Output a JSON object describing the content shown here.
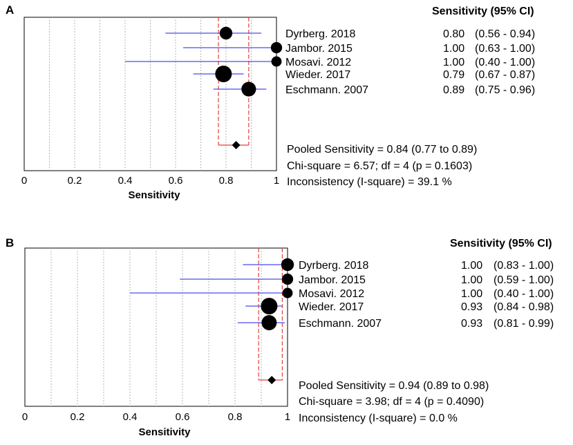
{
  "chart_data": [
    {
      "type": "forest",
      "panel": "A",
      "header": "Sensitivity (95% CI)",
      "xlabel": "Sensitivity",
      "xlim": [
        0,
        1
      ],
      "ticks": [
        "0",
        "0.2",
        "0.4",
        "0.6",
        "0.8",
        "1"
      ],
      "tick_values": [
        0,
        0.2,
        0.4,
        0.6,
        0.8,
        1
      ],
      "studies": [
        {
          "name": "Dyrberg. 2018",
          "est": 0.8,
          "lo": 0.56,
          "hi": 0.94,
          "est_label": "0.80",
          "ci_label": "(0.56 - 0.94)",
          "weight": 0.6
        },
        {
          "name": "Jambor. 2015",
          "est": 1.0,
          "lo": 0.63,
          "hi": 1.0,
          "est_label": "1.00",
          "ci_label": "(0.63 - 1.00)",
          "weight": 0.45
        },
        {
          "name": "Mosavi. 2012",
          "est": 1.0,
          "lo": 0.4,
          "hi": 1.0,
          "est_label": "1.00",
          "ci_label": "(0.40 - 1.00)",
          "weight": 0.35
        },
        {
          "name": "Wieder. 2017",
          "est": 0.79,
          "lo": 0.67,
          "hi": 0.87,
          "est_label": "0.79",
          "ci_label": "(0.67 - 0.87)",
          "weight": 1.0
        },
        {
          "name": "Eschmann. 2007",
          "est": 0.89,
          "lo": 0.75,
          "hi": 0.96,
          "est_label": "0.89",
          "ci_label": "(0.75 - 0.96)",
          "weight": 0.8
        }
      ],
      "pooled": {
        "est": 0.84,
        "lo": 0.77,
        "hi": 0.89
      },
      "summary": [
        "Pooled Sensitivity = 0.84 (0.77 to 0.89)",
        "Chi-square = 6.57; df =  4 (p = 0.1603)",
        "Inconsistency (I-square) = 39.1 %"
      ]
    },
    {
      "type": "forest",
      "panel": "B",
      "header": "Sensitivity (95% CI)",
      "xlabel": "Sensitivity",
      "xlim": [
        0,
        1
      ],
      "ticks": [
        "0",
        "0.2",
        "0.4",
        "0.6",
        "0.8",
        "1"
      ],
      "tick_values": [
        0,
        0.2,
        0.4,
        0.6,
        0.8,
        1
      ],
      "studies": [
        {
          "name": "Dyrberg. 2018",
          "est": 1.0,
          "lo": 0.83,
          "hi": 1.0,
          "est_label": "1.00",
          "ci_label": "(0.83 - 1.00)",
          "weight": 0.6
        },
        {
          "name": "Jambor. 2015",
          "est": 1.0,
          "lo": 0.59,
          "hi": 1.0,
          "est_label": "1.00",
          "ci_label": "(0.59 - 1.00)",
          "weight": 0.45
        },
        {
          "name": "Mosavi. 2012",
          "est": 1.0,
          "lo": 0.4,
          "hi": 1.0,
          "est_label": "1.00",
          "ci_label": "(0.40 - 1.00)",
          "weight": 0.35
        },
        {
          "name": "Wieder. 2017",
          "est": 0.93,
          "lo": 0.84,
          "hi": 0.98,
          "est_label": "0.93",
          "ci_label": "(0.84 - 0.98)",
          "weight": 1.0
        },
        {
          "name": "Eschmann. 2007",
          "est": 0.93,
          "lo": 0.81,
          "hi": 0.99,
          "est_label": "0.93",
          "ci_label": "(0.81 - 0.99)",
          "weight": 0.85
        }
      ],
      "pooled": {
        "est": 0.94,
        "lo": 0.89,
        "hi": 0.98
      },
      "summary": [
        "Pooled Sensitivity = 0.94 (0.89 to 0.98)",
        "Chi-square = 3.98; df =  4 (p = 0.4090)",
        "Inconsistency (I-square) = 0.0 %"
      ]
    }
  ],
  "colors": {
    "ci_line": "#4b4bf0",
    "pooled_bounds": "#e0403c",
    "grid": "#b4b4b4",
    "marker": "#000000"
  }
}
